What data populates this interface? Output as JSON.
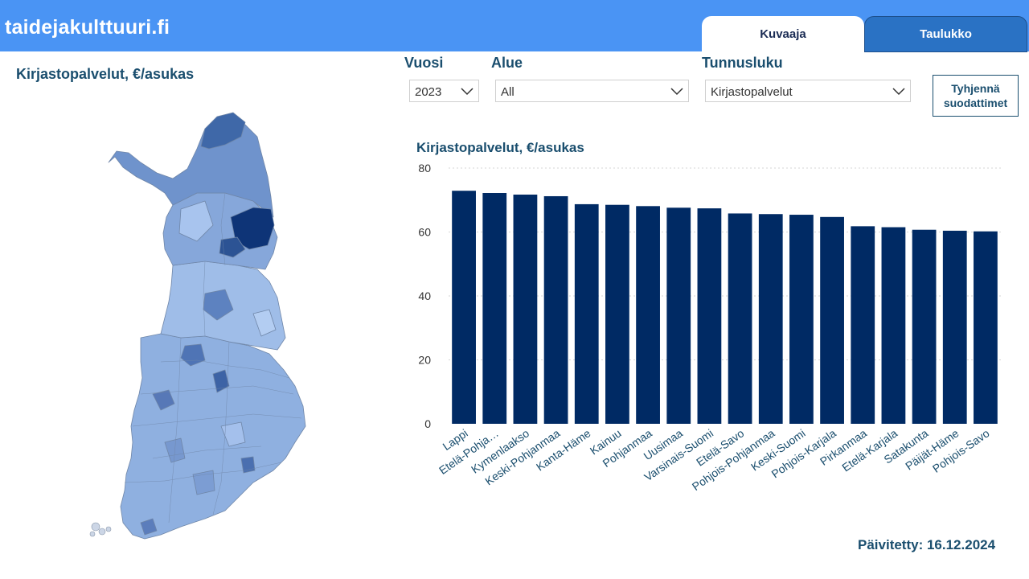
{
  "header": {
    "site_title": "taidejakulttuuri.fi",
    "tabs": [
      {
        "label": "Kuvaaja",
        "active": true
      },
      {
        "label": "Taulukko",
        "active": false
      }
    ],
    "color": "#4a94f4"
  },
  "map": {
    "title": "Kirjastopalvelut, €/asukas"
  },
  "filters": {
    "year": {
      "label": "Vuosi",
      "value": "2023"
    },
    "region": {
      "label": "Alue",
      "value": "All"
    },
    "metric": {
      "label": "Tunnusluku",
      "value": "Kirjastopalvelut"
    },
    "clear_button": {
      "line1": "Tyhjennä",
      "line2": "suodattimet"
    }
  },
  "chart_data": {
    "type": "bar",
    "title": "Kirjastopalvelut, €/asukas",
    "categories": [
      "Lappi",
      "Etelä-Pohja…",
      "Kymenlaakso",
      "Keski-Pohjanmaa",
      "Kanta-Häme",
      "Kainuu",
      "Pohjanmaa",
      "Uusimaa",
      "Varsinais-Suomi",
      "Etelä-Savo",
      "Pohjois-Pohjanmaa",
      "Keski-Suomi",
      "Pohjois-Karjala",
      "Pirkanmaa",
      "Etelä-Karjala",
      "Satakunta",
      "Päijät-Häme",
      "Pohjois-Savo"
    ],
    "values": [
      72.9,
      72.2,
      71.7,
      71.2,
      68.7,
      68.5,
      68.1,
      67.6,
      67.4,
      65.8,
      65.6,
      65.4,
      64.7,
      61.8,
      61.5,
      60.7,
      60.4,
      60.2
    ],
    "yticks": [
      "0",
      "20",
      "40",
      "60",
      "80"
    ],
    "ylim": [
      0,
      80
    ],
    "bar_color": "#002a64",
    "grid": true
  },
  "footer": {
    "updated": "Päivitetty: 16.12.2024"
  }
}
